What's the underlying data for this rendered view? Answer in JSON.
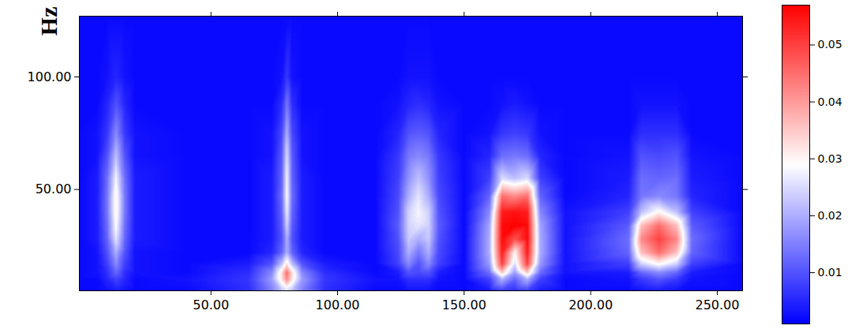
{
  "chart_data": {
    "type": "heatmap",
    "y_label": "Hz",
    "xlim": [
      -2,
      260
    ],
    "ylim": [
      5,
      127
    ],
    "xticks": [
      {
        "value": 50,
        "label": "50.00"
      },
      {
        "value": 100,
        "label": "100.00"
      },
      {
        "value": 150,
        "label": "150.00"
      },
      {
        "value": 200,
        "label": "200.00"
      },
      {
        "value": 250,
        "label": "250.00"
      }
    ],
    "yticks": [
      {
        "value": 50,
        "label": "50.00"
      },
      {
        "value": 100,
        "label": "100.00"
      }
    ],
    "colors": [
      "#0000ff",
      "#ffffff",
      "#ff0000"
    ],
    "colorbar": {
      "range": [
        0.001,
        0.057
      ],
      "ticks": [
        0.01,
        0.02,
        0.03,
        0.04,
        0.05
      ]
    },
    "x": [
      -2,
      5,
      9,
      12.5,
      16,
      20,
      40,
      65,
      74,
      78,
      80,
      82,
      86,
      95,
      115,
      124,
      128,
      132,
      136,
      140,
      150,
      160,
      165,
      170,
      175,
      180,
      190,
      215,
      220,
      227,
      234,
      240,
      260
    ],
    "y": [
      5,
      10,
      13,
      17,
      22,
      28,
      34,
      40,
      47,
      55,
      65,
      75,
      88,
      100,
      127
    ],
    "cells": [
      [
        0.002,
        0.002,
        0.003,
        0.004,
        0.003,
        0.002,
        0.002,
        0.006,
        0.015,
        0.022,
        0.025,
        0.022,
        0.015,
        0.006,
        0.002,
        0.002,
        0.003,
        0.003,
        0.003,
        0.002,
        0.002,
        0.004,
        0.008,
        0.006,
        0.008,
        0.004,
        0.002,
        0.002,
        0.003,
        0.004,
        0.003,
        0.002,
        0.002
      ],
      [
        0.002,
        0.002,
        0.005,
        0.008,
        0.005,
        0.002,
        0.003,
        0.007,
        0.018,
        0.032,
        0.042,
        0.032,
        0.018,
        0.007,
        0.003,
        0.003,
        0.006,
        0.006,
        0.006,
        0.003,
        0.002,
        0.008,
        0.02,
        0.012,
        0.02,
        0.008,
        0.002,
        0.003,
        0.007,
        0.01,
        0.007,
        0.003,
        0.002
      ],
      [
        0.002,
        0.003,
        0.006,
        0.012,
        0.006,
        0.003,
        0.002,
        0.006,
        0.016,
        0.033,
        0.045,
        0.033,
        0.016,
        0.006,
        0.002,
        0.004,
        0.01,
        0.009,
        0.01,
        0.004,
        0.002,
        0.013,
        0.035,
        0.018,
        0.035,
        0.013,
        0.003,
        0.004,
        0.012,
        0.016,
        0.012,
        0.004,
        0.002
      ],
      [
        0.002,
        0.003,
        0.008,
        0.016,
        0.008,
        0.003,
        0.002,
        0.004,
        0.01,
        0.022,
        0.032,
        0.022,
        0.01,
        0.004,
        0.002,
        0.008,
        0.016,
        0.01,
        0.016,
        0.008,
        0.002,
        0.018,
        0.05,
        0.025,
        0.05,
        0.018,
        0.003,
        0.008,
        0.024,
        0.03,
        0.024,
        0.008,
        0.002
      ],
      [
        0.002,
        0.003,
        0.01,
        0.02,
        0.01,
        0.003,
        0.002,
        0.002,
        0.005,
        0.012,
        0.02,
        0.012,
        0.005,
        0.002,
        0.002,
        0.009,
        0.02,
        0.014,
        0.02,
        0.009,
        0.002,
        0.02,
        0.054,
        0.03,
        0.054,
        0.02,
        0.003,
        0.012,
        0.036,
        0.045,
        0.036,
        0.012,
        0.002
      ],
      [
        0.002,
        0.004,
        0.012,
        0.026,
        0.012,
        0.004,
        0.002,
        0.002,
        0.004,
        0.01,
        0.02,
        0.01,
        0.004,
        0.002,
        0.002,
        0.01,
        0.023,
        0.02,
        0.023,
        0.01,
        0.002,
        0.02,
        0.056,
        0.048,
        0.056,
        0.02,
        0.003,
        0.013,
        0.042,
        0.05,
        0.042,
        0.013,
        0.002
      ],
      [
        0.002,
        0.004,
        0.013,
        0.029,
        0.013,
        0.004,
        0.002,
        0.002,
        0.004,
        0.011,
        0.024,
        0.011,
        0.004,
        0.002,
        0.002,
        0.011,
        0.024,
        0.026,
        0.024,
        0.011,
        0.002,
        0.019,
        0.056,
        0.057,
        0.056,
        0.019,
        0.003,
        0.011,
        0.036,
        0.045,
        0.036,
        0.011,
        0.002
      ],
      [
        0.002,
        0.004,
        0.014,
        0.031,
        0.014,
        0.004,
        0.002,
        0.002,
        0.004,
        0.012,
        0.027,
        0.012,
        0.004,
        0.002,
        0.002,
        0.01,
        0.024,
        0.028,
        0.024,
        0.01,
        0.002,
        0.016,
        0.054,
        0.055,
        0.054,
        0.016,
        0.003,
        0.008,
        0.022,
        0.03,
        0.022,
        0.008,
        0.002
      ],
      [
        0.002,
        0.004,
        0.014,
        0.031,
        0.014,
        0.004,
        0.002,
        0.002,
        0.004,
        0.013,
        0.029,
        0.013,
        0.004,
        0.002,
        0.002,
        0.009,
        0.02,
        0.026,
        0.02,
        0.009,
        0.002,
        0.012,
        0.045,
        0.042,
        0.045,
        0.012,
        0.002,
        0.005,
        0.014,
        0.016,
        0.014,
        0.005,
        0.002
      ],
      [
        0.002,
        0.004,
        0.013,
        0.028,
        0.013,
        0.004,
        0.002,
        0.002,
        0.004,
        0.012,
        0.028,
        0.012,
        0.004,
        0.002,
        0.002,
        0.008,
        0.017,
        0.022,
        0.017,
        0.008,
        0.002,
        0.008,
        0.025,
        0.022,
        0.025,
        0.008,
        0.002,
        0.004,
        0.013,
        0.012,
        0.013,
        0.004,
        0.002
      ],
      [
        0.002,
        0.003,
        0.01,
        0.022,
        0.01,
        0.003,
        0.002,
        0.002,
        0.003,
        0.011,
        0.025,
        0.011,
        0.003,
        0.002,
        0.002,
        0.007,
        0.014,
        0.016,
        0.014,
        0.007,
        0.002,
        0.005,
        0.013,
        0.014,
        0.013,
        0.005,
        0.002,
        0.003,
        0.01,
        0.009,
        0.01,
        0.003,
        0.002
      ],
      [
        0.002,
        0.003,
        0.007,
        0.016,
        0.007,
        0.003,
        0.002,
        0.002,
        0.003,
        0.009,
        0.02,
        0.009,
        0.003,
        0.002,
        0.002,
        0.005,
        0.01,
        0.011,
        0.01,
        0.005,
        0.002,
        0.003,
        0.007,
        0.008,
        0.007,
        0.003,
        0.002,
        0.002,
        0.006,
        0.006,
        0.006,
        0.002,
        0.002
      ],
      [
        0.002,
        0.002,
        0.005,
        0.01,
        0.005,
        0.002,
        0.002,
        0.002,
        0.002,
        0.006,
        0.014,
        0.006,
        0.002,
        0.002,
        0.002,
        0.003,
        0.005,
        0.006,
        0.005,
        0.003,
        0.002,
        0.002,
        0.003,
        0.004,
        0.003,
        0.002,
        0.002,
        0.002,
        0.003,
        0.003,
        0.003,
        0.002,
        0.002
      ],
      [
        0.002,
        0.002,
        0.003,
        0.005,
        0.003,
        0.002,
        0.002,
        0.002,
        0.002,
        0.003,
        0.007,
        0.003,
        0.002,
        0.002,
        0.002,
        0.002,
        0.003,
        0.003,
        0.003,
        0.002,
        0.002,
        0.002,
        0.002,
        0.002,
        0.002,
        0.002,
        0.002,
        0.002,
        0.002,
        0.002,
        0.002,
        0.002,
        0.002
      ],
      [
        0.002,
        0.002,
        0.002,
        0.002,
        0.002,
        0.002,
        0.002,
        0.002,
        0.002,
        0.002,
        0.002,
        0.002,
        0.002,
        0.002,
        0.002,
        0.002,
        0.002,
        0.002,
        0.002,
        0.002,
        0.002,
        0.002,
        0.002,
        0.002,
        0.002,
        0.002,
        0.002,
        0.002,
        0.002,
        0.002,
        0.002,
        0.002,
        0.002
      ]
    ]
  }
}
